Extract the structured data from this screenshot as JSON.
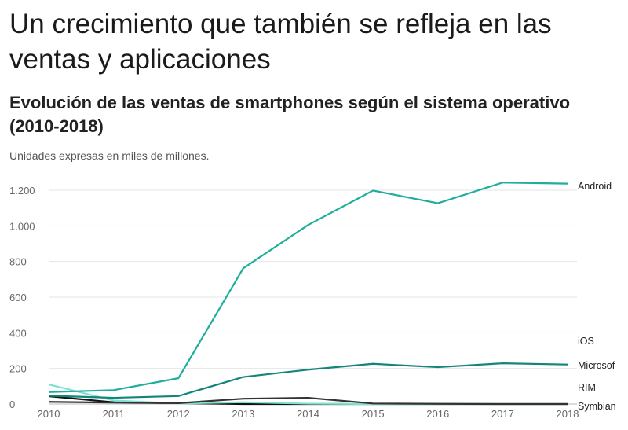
{
  "headline": "Un crecimiento que también se refleja en las ventas y aplicaciones",
  "chart_data": {
    "type": "line",
    "title": "Evolución de las ventas de smartphones según el sistema operativo (2010-2018)",
    "subtitle": "Unidades expresas en miles de millones.",
    "xlabel": "",
    "ylabel": "",
    "x": [
      2010,
      2011,
      2012,
      2013,
      2014,
      2015,
      2016,
      2017,
      2018
    ],
    "ylim": [
      0,
      1200
    ],
    "yticks": [
      0,
      200,
      400,
      600,
      800,
      1000,
      1200
    ],
    "ytick_labels": [
      "0",
      "200",
      "400",
      "600",
      "800",
      "1.000",
      "1.200"
    ],
    "grid": true,
    "series": [
      {
        "name": "Android",
        "color": "#1fae9b",
        "values": [
          67,
          78,
          145,
          762,
          1005,
          1198,
          1127,
          1243,
          1237
        ]
      },
      {
        "name": "iOS",
        "color": "#14857a",
        "values": [
          47,
          35,
          45,
          152,
          193,
          226,
          207,
          229,
          222
        ]
      },
      {
        "name": "Microsof",
        "color": "#333333",
        "values": [
          12,
          8,
          5,
          30,
          35,
          3,
          1,
          0,
          0
        ]
      },
      {
        "name": "RIM",
        "color": "#7fe0d4",
        "values": [
          110,
          20,
          3,
          10,
          2,
          0,
          0,
          0,
          0
        ]
      },
      {
        "name": "Symbian",
        "color": "#111111",
        "values": [
          44,
          10,
          5,
          0,
          0,
          0,
          0,
          0,
          0
        ]
      }
    ]
  }
}
